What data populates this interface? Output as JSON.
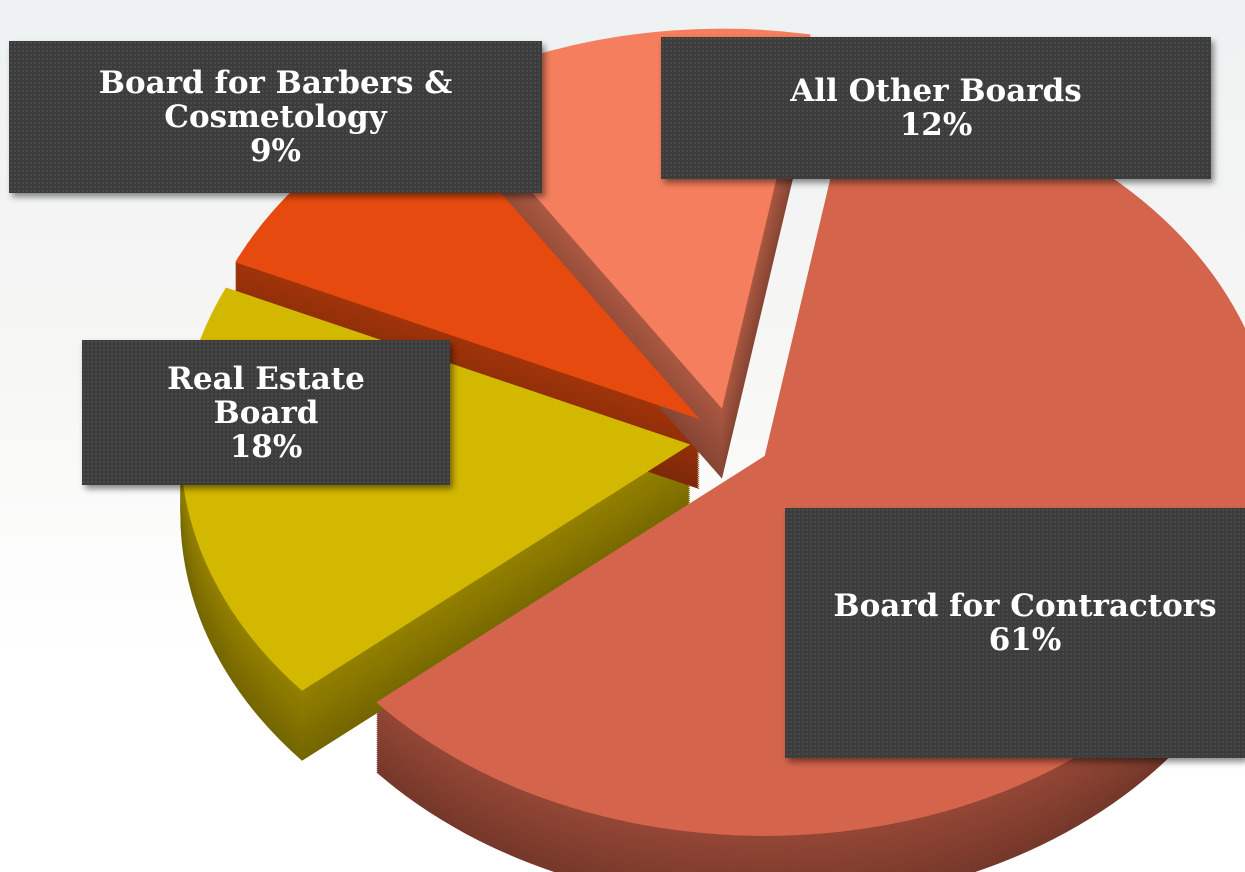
{
  "chart_data": {
    "type": "pie",
    "categories": [
      "Board for Contractors",
      "Real Estate Board",
      "Board for Barbers & Cosmetology",
      "All Other Boards"
    ],
    "values": [
      61,
      18,
      9,
      12
    ],
    "value_labels": [
      "61%",
      "18%",
      "9%",
      "12%"
    ],
    "colors": [
      "#d4654c",
      "#d3b800",
      "#e64a0e",
      "#f47e5e"
    ]
  }
}
